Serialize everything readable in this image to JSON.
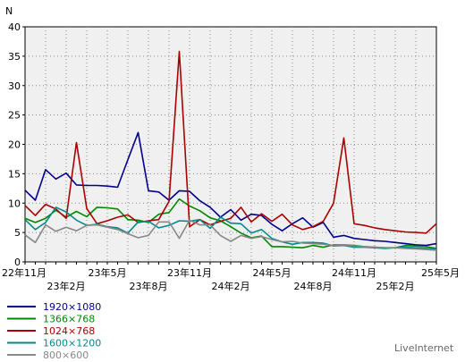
{
  "chart_data": {
    "type": "line",
    "ylabel": "N",
    "ylim": [
      0,
      40
    ],
    "yticks": [
      0,
      5,
      10,
      15,
      20,
      25,
      30,
      35,
      40
    ],
    "grid": true,
    "legend_position": "bottom-left",
    "x_tick_labels": [
      {
        "label": "22年11月",
        "index": 0,
        "row": 0
      },
      {
        "label": "23年2月",
        "index": 4,
        "row": 1
      },
      {
        "label": "23年5月",
        "index": 8,
        "row": 0
      },
      {
        "label": "23年8月",
        "index": 12,
        "row": 1
      },
      {
        "label": "23年11月",
        "index": 16,
        "row": 0
      },
      {
        "label": "24年2月",
        "index": 20,
        "row": 1
      },
      {
        "label": "24年5月",
        "index": 24,
        "row": 0
      },
      {
        "label": "24年8月",
        "index": 28,
        "row": 1
      },
      {
        "label": "24年11月",
        "index": 32,
        "row": 0
      },
      {
        "label": "25年2月",
        "index": 36,
        "row": 1
      },
      {
        "label": "25年5月",
        "index": 40,
        "row": 0
      }
    ],
    "x_count": 41,
    "series": [
      {
        "name": "1920×1080",
        "color": "#00008b",
        "values": [
          12.2,
          10.5,
          15.7,
          14.1,
          15.1,
          13.1,
          13.0,
          13.0,
          12.9,
          12.7,
          17.4,
          22.0,
          12.1,
          11.9,
          10.5,
          12.1,
          12.0,
          10.4,
          9.3,
          7.6,
          8.9,
          7.1,
          8.1,
          7.9,
          6.4,
          5.3,
          6.5,
          7.5,
          5.9,
          6.7,
          4.2,
          4.5,
          4.0,
          3.8,
          3.6,
          3.5,
          3.3,
          3.1,
          2.9,
          2.8,
          3.1
        ]
      },
      {
        "name": "1366×768",
        "color": "#008800",
        "values": [
          7.4,
          6.7,
          7.4,
          8.8,
          7.6,
          8.6,
          7.7,
          9.3,
          9.2,
          9.0,
          7.2,
          7.1,
          6.7,
          8.1,
          8.4,
          10.7,
          9.5,
          8.7,
          7.5,
          7.0,
          6.0,
          4.9,
          4.1,
          4.4,
          2.6,
          2.6,
          2.5,
          2.4,
          2.8,
          2.5,
          2.9,
          2.9,
          2.8,
          2.6,
          2.5,
          2.4,
          2.4,
          2.8,
          2.7,
          2.6,
          2.3
        ]
      },
      {
        "name": "1024×768",
        "color": "#aa0000",
        "values": [
          9.6,
          7.9,
          9.8,
          9.0,
          7.4,
          20.3,
          9.1,
          6.5,
          7.0,
          7.6,
          8.0,
          6.7,
          7.0,
          7.2,
          10.3,
          35.8,
          6.0,
          7.2,
          6.3,
          6.9,
          7.4,
          9.3,
          6.8,
          8.2,
          6.9,
          8.1,
          6.3,
          5.5,
          6.0,
          6.9,
          10.0,
          21.1,
          6.5,
          6.2,
          5.8,
          5.5,
          5.3,
          5.1,
          5.0,
          4.9,
          6.5
        ]
      },
      {
        "name": "1600×1200",
        "color": "#008b8b",
        "values": [
          7.2,
          5.5,
          6.7,
          9.3,
          8.5,
          7.1,
          6.2,
          6.4,
          6.0,
          5.8,
          4.9,
          6.8,
          6.9,
          5.8,
          6.2,
          7.0,
          6.9,
          7.2,
          5.7,
          7.6,
          6.6,
          6.5,
          4.9,
          5.5,
          4.0,
          3.4,
          3.0,
          3.3,
          3.3,
          3.2,
          2.7,
          2.8,
          2.5,
          2.5,
          2.4,
          2.3,
          2.4,
          2.5,
          2.4,
          2.3,
          2.1
        ]
      },
      {
        "name": "800×600",
        "color": "#888888",
        "values": [
          4.6,
          3.3,
          6.3,
          5.2,
          5.9,
          5.3,
          6.2,
          6.3,
          5.9,
          5.5,
          4.8,
          4.1,
          4.5,
          6.8,
          6.8,
          4.0,
          7.1,
          6.3,
          6.3,
          4.5,
          3.5,
          4.5,
          4.0,
          4.3,
          3.8,
          3.4,
          3.5,
          3.2,
          3.1,
          3.0,
          2.8,
          2.9,
          2.7,
          2.6,
          2.5,
          2.4,
          2.4,
          2.3,
          2.2,
          2.1,
          2.0
        ]
      }
    ]
  },
  "legend": {
    "items": [
      {
        "label": "1920×1080",
        "color": "#00008b"
      },
      {
        "label": "1366×768",
        "color": "#008800"
      },
      {
        "label": "1024×768",
        "color": "#aa0000"
      },
      {
        "label": "1600×1200",
        "color": "#008b8b"
      },
      {
        "label": "800×600",
        "color": "#888888"
      }
    ]
  },
  "brand": "LiveInternet"
}
